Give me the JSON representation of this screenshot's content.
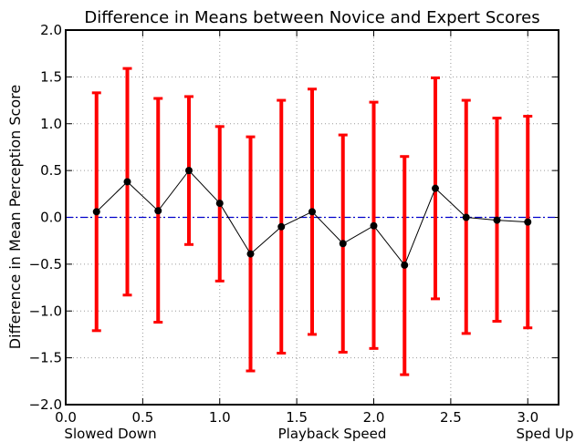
{
  "chart_data": {
    "type": "line",
    "title": "Difference in Means between Novice and Expert Scores",
    "xlabel": "Playback Speed",
    "ylabel": "Difference in Mean Perception Score",
    "x_end_labels": {
      "left": "Slowed Down",
      "right": "Sped Up"
    },
    "xlim": [
      0.0,
      3.2
    ],
    "ylim": [
      -2.0,
      2.0
    ],
    "xticks": [
      "0.0",
      "0.5",
      "1.0",
      "1.5",
      "2.0",
      "2.5",
      "3.0"
    ],
    "yticks": [
      "−2.0",
      "−1.5",
      "−1.0",
      "−0.5",
      "0.0",
      "0.5",
      "1.0",
      "1.5",
      "2.0"
    ],
    "grid": true,
    "reference_line": {
      "y": 0.0,
      "style": "dash-dot",
      "color": "#0000cc"
    },
    "colors": {
      "line": "#000000",
      "errorbar": "#ff0000"
    },
    "series": [
      {
        "x": [
          0.2,
          0.4,
          0.6,
          0.8,
          1.0,
          1.2,
          1.4,
          1.6,
          1.8,
          2.0,
          2.2,
          2.4,
          2.6,
          2.8,
          3.0
        ],
        "y": [
          0.06,
          0.38,
          0.07,
          0.5,
          0.15,
          -0.39,
          -0.1,
          0.06,
          -0.28,
          -0.09,
          -0.51,
          0.31,
          0.0,
          -0.03,
          -0.05
        ],
        "lower": [
          -1.21,
          -0.83,
          -1.12,
          -0.29,
          -0.68,
          -1.64,
          -1.45,
          -1.25,
          -1.44,
          -1.4,
          -1.68,
          -0.87,
          -1.24,
          -1.11,
          -1.18
        ],
        "upper": [
          1.33,
          1.59,
          1.27,
          1.29,
          0.97,
          0.86,
          1.25,
          1.37,
          0.88,
          1.23,
          0.65,
          1.49,
          1.25,
          1.06,
          1.08
        ]
      }
    ]
  }
}
